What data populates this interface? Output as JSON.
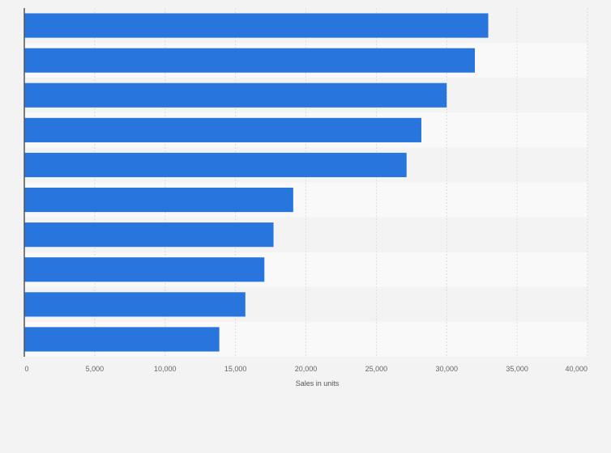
{
  "chart_data": {
    "type": "bar",
    "orientation": "horizontal",
    "title": "",
    "xlabel": "Sales in units",
    "ylabel": "",
    "categories": [
      "",
      "",
      "",
      "",
      "",
      "",
      "",
      "",
      "",
      ""
    ],
    "values": [
      32950,
      32000,
      30000,
      28200,
      27150,
      19100,
      17700,
      17050,
      15700,
      13850
    ],
    "xlim": [
      0,
      40000
    ],
    "xticks": [
      0,
      5000,
      10000,
      15000,
      20000,
      25000,
      30000,
      35000,
      40000
    ],
    "xtick_labels": [
      "0",
      "5,000",
      "10,000",
      "15,000",
      "20,000",
      "25,000",
      "30,000",
      "35,000",
      "40,000"
    ],
    "grid": true,
    "legend": "none",
    "colors": {
      "bar": "#2876dd",
      "band_light": "#f9f9f9",
      "band_dark": "#f3f3f3",
      "grid": "#dddddd",
      "axis": "#555555"
    }
  }
}
